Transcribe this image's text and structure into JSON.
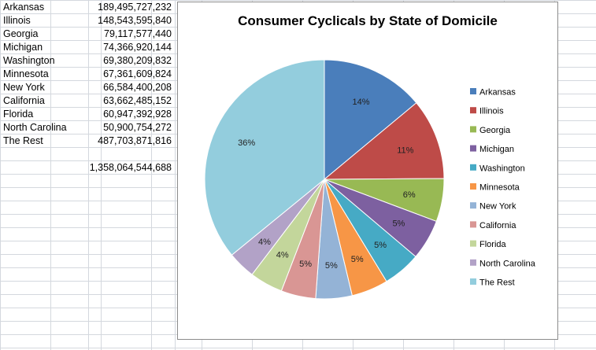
{
  "spreadsheet": {
    "rows": [
      {
        "state": "Arkansas",
        "value": "189,495,727,232"
      },
      {
        "state": "Illinois",
        "value": "148,543,595,840"
      },
      {
        "state": "Georgia",
        "value": "79,117,577,440"
      },
      {
        "state": "Michigan",
        "value": "74,366,920,144"
      },
      {
        "state": "Washington",
        "value": "69,380,209,832"
      },
      {
        "state": "Minnesota",
        "value": "67,361,609,824"
      },
      {
        "state": "New York",
        "value": "66,584,400,208"
      },
      {
        "state": "California",
        "value": "63,662,485,152"
      },
      {
        "state": "Florida",
        "value": "60,947,392,928"
      },
      {
        "state": "North Carolina",
        "value": "50,900,754,272"
      },
      {
        "state": "The Rest",
        "value": "487,703,871,816"
      }
    ],
    "total": "1,358,064,544,688"
  },
  "chart_data": {
    "type": "pie",
    "title": "Consumer Cyclicals by State of Domicile",
    "categories": [
      "Arkansas",
      "Illinois",
      "Georgia",
      "Michigan",
      "Washington",
      "Minnesota",
      "New York",
      "California",
      "Florida",
      "North Carolina",
      "The Rest"
    ],
    "values": [
      189495727232,
      148543595840,
      79117577440,
      74366920144,
      69380209832,
      67361609824,
      66584400208,
      63662485152,
      60947392928,
      50900754272,
      487703871816
    ],
    "data_labels": [
      "14%",
      "11%",
      "6%",
      "5%",
      "5%",
      "5%",
      "5%",
      "5%",
      "4%",
      "4%",
      "36%"
    ],
    "colors": [
      "#4a7ebb",
      "#be4b48",
      "#98b954",
      "#7d60a0",
      "#46aac5",
      "#f79646",
      "#94b3d6",
      "#d99694",
      "#c3d69b",
      "#b2a2c7",
      "#93cddd"
    ],
    "legend_position": "right"
  }
}
